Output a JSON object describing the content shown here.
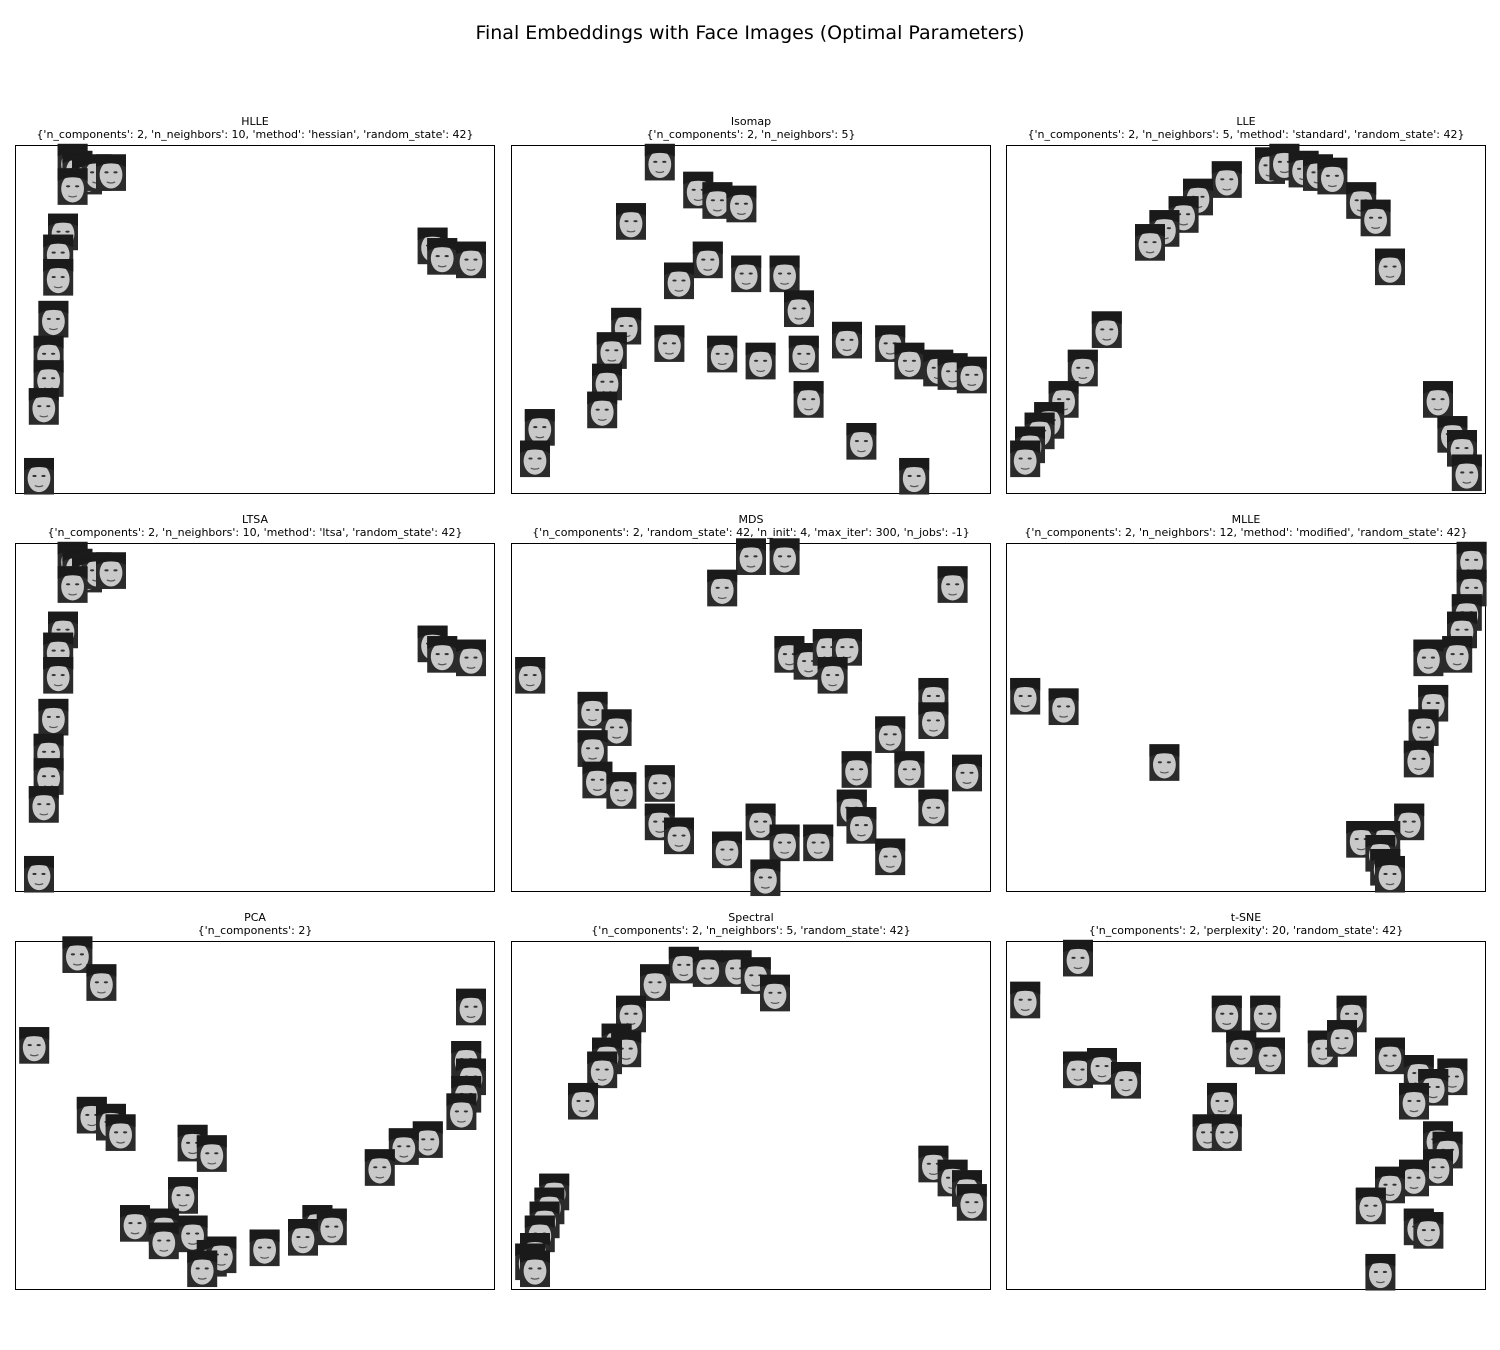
{
  "figure": {
    "title": "Final Embeddings with Face Images (Optimal Parameters)"
  },
  "chart_data": [
    {
      "type": "scatter",
      "method": "HLLE",
      "params": "{'n_components': 2, 'n_neighbors': 10, 'method': 'hessian', 'random_state': 42}",
      "xlim": [
        0,
        1
      ],
      "ylim": [
        0,
        1
      ],
      "axes": "off",
      "points": [
        [
          0.12,
          0.95
        ],
        [
          0.13,
          0.93
        ],
        [
          0.15,
          0.91
        ],
        [
          0.17,
          0.92
        ],
        [
          0.2,
          0.92
        ],
        [
          0.12,
          0.88
        ],
        [
          0.1,
          0.75
        ],
        [
          0.09,
          0.69
        ],
        [
          0.09,
          0.62
        ],
        [
          0.08,
          0.5
        ],
        [
          0.07,
          0.4
        ],
        [
          0.07,
          0.33
        ],
        [
          0.06,
          0.25
        ],
        [
          0.05,
          0.05
        ],
        [
          0.87,
          0.71
        ],
        [
          0.89,
          0.68
        ],
        [
          0.95,
          0.67
        ]
      ]
    },
    {
      "type": "scatter",
      "method": "Isomap",
      "params": "{'n_components': 2, 'n_neighbors': 5}",
      "xlim": [
        0,
        1
      ],
      "ylim": [
        0,
        1
      ],
      "axes": "off",
      "points": [
        [
          0.31,
          0.95
        ],
        [
          0.39,
          0.87
        ],
        [
          0.43,
          0.84
        ],
        [
          0.48,
          0.83
        ],
        [
          0.25,
          0.78
        ],
        [
          0.41,
          0.67
        ],
        [
          0.35,
          0.61
        ],
        [
          0.49,
          0.63
        ],
        [
          0.57,
          0.63
        ],
        [
          0.6,
          0.53
        ],
        [
          0.24,
          0.48
        ],
        [
          0.21,
          0.41
        ],
        [
          0.33,
          0.43
        ],
        [
          0.44,
          0.4
        ],
        [
          0.52,
          0.38
        ],
        [
          0.61,
          0.4
        ],
        [
          0.7,
          0.44
        ],
        [
          0.79,
          0.43
        ],
        [
          0.83,
          0.38
        ],
        [
          0.89,
          0.36
        ],
        [
          0.92,
          0.35
        ],
        [
          0.96,
          0.34
        ],
        [
          0.2,
          0.32
        ],
        [
          0.19,
          0.24
        ],
        [
          0.62,
          0.27
        ],
        [
          0.06,
          0.19
        ],
        [
          0.05,
          0.1
        ],
        [
          0.73,
          0.15
        ],
        [
          0.84,
          0.05
        ]
      ]
    },
    {
      "type": "scatter",
      "method": "LLE",
      "params": "{'n_components': 2, 'n_neighbors': 5, 'method': 'standard', 'random_state': 42}",
      "xlim": [
        0,
        1
      ],
      "ylim": [
        0,
        1
      ],
      "axes": "off",
      "points": [
        [
          0.55,
          0.94
        ],
        [
          0.58,
          0.95
        ],
        [
          0.62,
          0.93
        ],
        [
          0.65,
          0.92
        ],
        [
          0.68,
          0.91
        ],
        [
          0.46,
          0.9
        ],
        [
          0.4,
          0.85
        ],
        [
          0.37,
          0.8
        ],
        [
          0.33,
          0.76
        ],
        [
          0.3,
          0.72
        ],
        [
          0.74,
          0.84
        ],
        [
          0.77,
          0.79
        ],
        [
          0.8,
          0.65
        ],
        [
          0.21,
          0.47
        ],
        [
          0.16,
          0.36
        ],
        [
          0.12,
          0.27
        ],
        [
          0.09,
          0.21
        ],
        [
          0.07,
          0.18
        ],
        [
          0.05,
          0.14
        ],
        [
          0.04,
          0.1
        ],
        [
          0.9,
          0.27
        ],
        [
          0.93,
          0.17
        ],
        [
          0.95,
          0.13
        ],
        [
          0.96,
          0.06
        ]
      ]
    },
    {
      "type": "scatter",
      "method": "LTSA",
      "params": "{'n_components': 2, 'n_neighbors': 10, 'method': 'ltsa', 'random_state': 42}",
      "xlim": [
        0,
        1
      ],
      "ylim": [
        0,
        1
      ],
      "axes": "off",
      "points": [
        [
          0.12,
          0.95
        ],
        [
          0.13,
          0.93
        ],
        [
          0.15,
          0.91
        ],
        [
          0.17,
          0.92
        ],
        [
          0.2,
          0.92
        ],
        [
          0.12,
          0.88
        ],
        [
          0.1,
          0.75
        ],
        [
          0.09,
          0.69
        ],
        [
          0.09,
          0.62
        ],
        [
          0.08,
          0.5
        ],
        [
          0.07,
          0.4
        ],
        [
          0.07,
          0.33
        ],
        [
          0.06,
          0.25
        ],
        [
          0.05,
          0.05
        ],
        [
          0.87,
          0.71
        ],
        [
          0.89,
          0.68
        ],
        [
          0.95,
          0.67
        ]
      ]
    },
    {
      "type": "scatter",
      "method": "MDS",
      "params": "{'n_components': 2, 'random_state': 42, 'n_init': 4, 'max_iter': 300, 'n_jobs': -1}",
      "xlim": [
        0,
        1
      ],
      "ylim": [
        0,
        1
      ],
      "axes": "off",
      "points": [
        [
          0.5,
          0.96
        ],
        [
          0.57,
          0.96
        ],
        [
          0.44,
          0.87
        ],
        [
          0.92,
          0.88
        ],
        [
          0.58,
          0.68
        ],
        [
          0.62,
          0.66
        ],
        [
          0.66,
          0.7
        ],
        [
          0.7,
          0.7
        ],
        [
          0.67,
          0.62
        ],
        [
          0.04,
          0.62
        ],
        [
          0.17,
          0.52
        ],
        [
          0.22,
          0.47
        ],
        [
          0.17,
          0.41
        ],
        [
          0.88,
          0.56
        ],
        [
          0.88,
          0.49
        ],
        [
          0.79,
          0.45
        ],
        [
          0.18,
          0.32
        ],
        [
          0.23,
          0.29
        ],
        [
          0.31,
          0.31
        ],
        [
          0.31,
          0.2
        ],
        [
          0.35,
          0.16
        ],
        [
          0.45,
          0.12
        ],
        [
          0.52,
          0.2
        ],
        [
          0.57,
          0.14
        ],
        [
          0.64,
          0.14
        ],
        [
          0.72,
          0.35
        ],
        [
          0.83,
          0.35
        ],
        [
          0.95,
          0.34
        ],
        [
          0.71,
          0.24
        ],
        [
          0.73,
          0.19
        ],
        [
          0.88,
          0.24
        ],
        [
          0.79,
          0.1
        ],
        [
          0.53,
          0.04
        ]
      ]
    },
    {
      "type": "scatter",
      "method": "MLLE",
      "params": "{'n_components': 2, 'n_neighbors': 12, 'method': 'modified', 'random_state': 42}",
      "xlim": [
        0,
        1
      ],
      "ylim": [
        0,
        1
      ],
      "axes": "off",
      "points": [
        [
          0.97,
          0.95
        ],
        [
          0.97,
          0.87
        ],
        [
          0.96,
          0.8
        ],
        [
          0.95,
          0.75
        ],
        [
          0.94,
          0.68
        ],
        [
          0.88,
          0.67
        ],
        [
          0.89,
          0.54
        ],
        [
          0.87,
          0.47
        ],
        [
          0.86,
          0.38
        ],
        [
          0.04,
          0.56
        ],
        [
          0.12,
          0.53
        ],
        [
          0.33,
          0.37
        ],
        [
          0.84,
          0.2
        ],
        [
          0.79,
          0.15
        ],
        [
          0.74,
          0.15
        ],
        [
          0.78,
          0.11
        ],
        [
          0.79,
          0.07
        ],
        [
          0.8,
          0.05
        ]
      ]
    },
    {
      "type": "scatter",
      "method": "PCA",
      "params": "{'n_components': 2}",
      "xlim": [
        0,
        1
      ],
      "ylim": [
        0,
        1
      ],
      "axes": "off",
      "points": [
        [
          0.13,
          0.96
        ],
        [
          0.18,
          0.88
        ],
        [
          0.95,
          0.81
        ],
        [
          0.04,
          0.7
        ],
        [
          0.94,
          0.66
        ],
        [
          0.95,
          0.61
        ],
        [
          0.94,
          0.56
        ],
        [
          0.93,
          0.51
        ],
        [
          0.16,
          0.5
        ],
        [
          0.2,
          0.48
        ],
        [
          0.22,
          0.45
        ],
        [
          0.86,
          0.43
        ],
        [
          0.81,
          0.41
        ],
        [
          0.37,
          0.42
        ],
        [
          0.41,
          0.39
        ],
        [
          0.76,
          0.35
        ],
        [
          0.35,
          0.27
        ],
        [
          0.25,
          0.19
        ],
        [
          0.31,
          0.18
        ],
        [
          0.37,
          0.16
        ],
        [
          0.31,
          0.14
        ],
        [
          0.63,
          0.19
        ],
        [
          0.66,
          0.18
        ],
        [
          0.6,
          0.15
        ],
        [
          0.52,
          0.12
        ],
        [
          0.41,
          0.09
        ],
        [
          0.43,
          0.1
        ],
        [
          0.39,
          0.06
        ]
      ]
    },
    {
      "type": "scatter",
      "method": "Spectral",
      "params": "{'n_components': 2, 'n_neighbors': 5, 'random_state': 42}",
      "xlim": [
        0,
        1
      ],
      "ylim": [
        0,
        1
      ],
      "axes": "off",
      "points": [
        [
          0.36,
          0.93
        ],
        [
          0.41,
          0.92
        ],
        [
          0.47,
          0.92
        ],
        [
          0.51,
          0.9
        ],
        [
          0.3,
          0.88
        ],
        [
          0.55,
          0.85
        ],
        [
          0.25,
          0.79
        ],
        [
          0.22,
          0.71
        ],
        [
          0.24,
          0.69
        ],
        [
          0.2,
          0.67
        ],
        [
          0.19,
          0.63
        ],
        [
          0.15,
          0.54
        ],
        [
          0.88,
          0.36
        ],
        [
          0.92,
          0.32
        ],
        [
          0.95,
          0.29
        ],
        [
          0.96,
          0.25
        ],
        [
          0.09,
          0.28
        ],
        [
          0.08,
          0.24
        ],
        [
          0.07,
          0.2
        ],
        [
          0.06,
          0.16
        ],
        [
          0.05,
          0.11
        ],
        [
          0.04,
          0.08
        ],
        [
          0.05,
          0.06
        ]
      ]
    },
    {
      "type": "scatter",
      "method": "t-SNE",
      "params": "{'n_components': 2, 'perplexity': 20, 'random_state': 42}",
      "xlim": [
        0,
        1
      ],
      "ylim": [
        0,
        1
      ],
      "axes": "off",
      "points": [
        [
          0.15,
          0.95
        ],
        [
          0.04,
          0.83
        ],
        [
          0.46,
          0.79
        ],
        [
          0.54,
          0.79
        ],
        [
          0.72,
          0.79
        ],
        [
          0.49,
          0.69
        ],
        [
          0.55,
          0.67
        ],
        [
          0.66,
          0.69
        ],
        [
          0.7,
          0.72
        ],
        [
          0.8,
          0.67
        ],
        [
          0.15,
          0.63
        ],
        [
          0.2,
          0.64
        ],
        [
          0.25,
          0.6
        ],
        [
          0.86,
          0.62
        ],
        [
          0.93,
          0.61
        ],
        [
          0.89,
          0.58
        ],
        [
          0.85,
          0.54
        ],
        [
          0.45,
          0.54
        ],
        [
          0.42,
          0.45
        ],
        [
          0.46,
          0.45
        ],
        [
          0.9,
          0.43
        ],
        [
          0.92,
          0.4
        ],
        [
          0.9,
          0.35
        ],
        [
          0.85,
          0.32
        ],
        [
          0.8,
          0.3
        ],
        [
          0.76,
          0.24
        ],
        [
          0.86,
          0.18
        ],
        [
          0.88,
          0.17
        ],
        [
          0.78,
          0.05
        ]
      ]
    }
  ]
}
